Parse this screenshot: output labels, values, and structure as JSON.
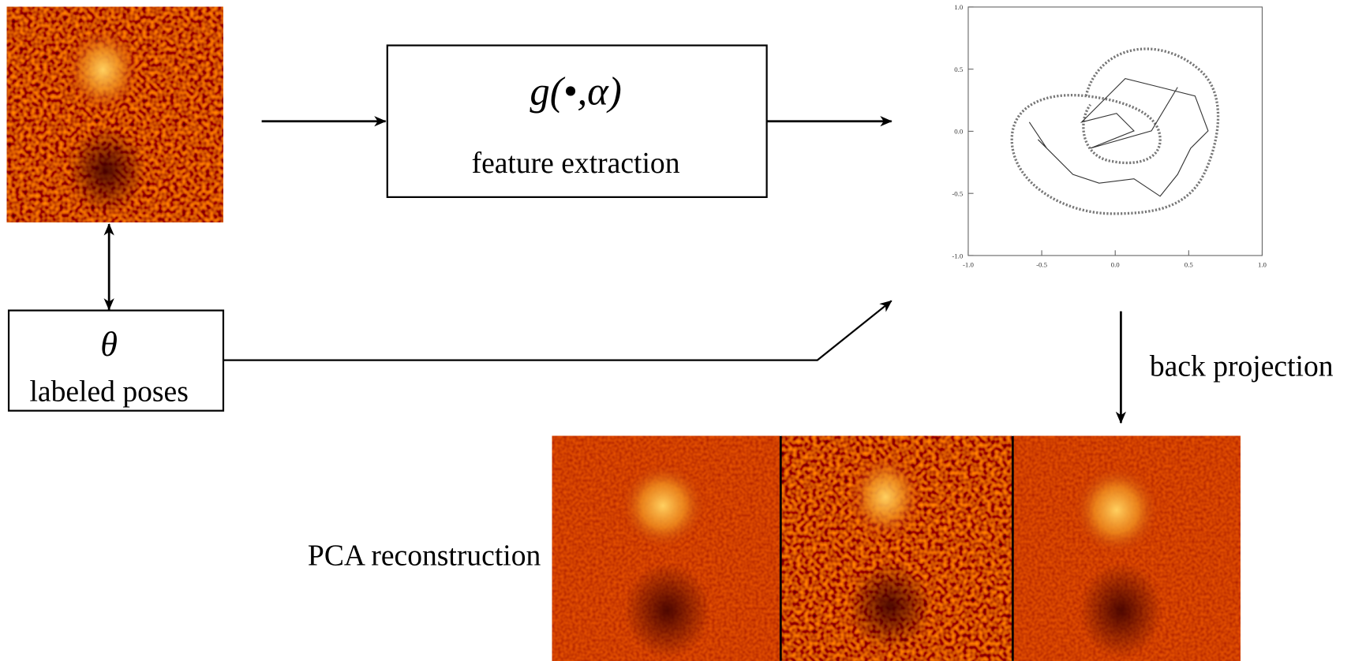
{
  "extraction_box": {
    "formula": "g(•,α)",
    "label": "feature extraction"
  },
  "pose_box": {
    "symbol": "θ",
    "label": "labeled poses"
  },
  "plot": {
    "yticks": [
      "1.0",
      "0.5",
      "0.0",
      "-0.5",
      "-1.0"
    ],
    "xticks": [
      "-1.0",
      "-0.5",
      "0.0",
      "0.5",
      "1.0"
    ]
  },
  "back_projection": "back projection",
  "reconstruction_label": "PCA reconstruction"
}
